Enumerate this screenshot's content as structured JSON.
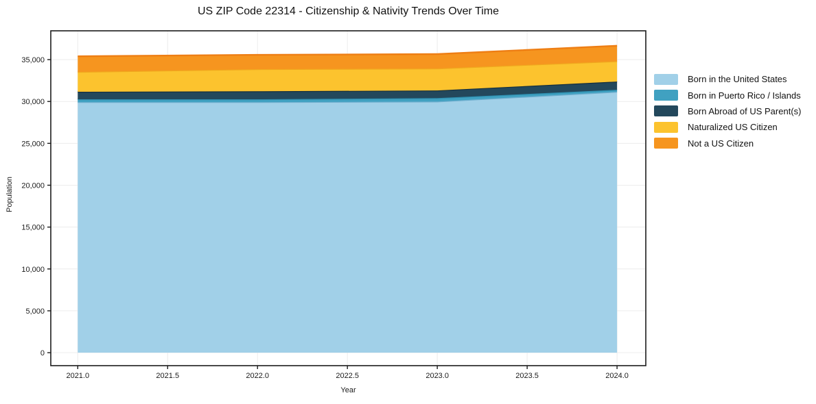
{
  "title": "US ZIP Code 22314 - Citizenship & Nativity Trends Over Time",
  "chart_data": {
    "type": "area",
    "stacked": true,
    "title": "US ZIP Code 22314 - Citizenship & Nativity Trends Over Time",
    "xlabel": "Year",
    "ylabel": "Population",
    "x": [
      2021,
      2022,
      2023,
      2024
    ],
    "series": [
      {
        "name": "Born in the United States",
        "fill": "#A1D0E8",
        "line": "#6FAECE",
        "values": [
          29930,
          29930,
          29990,
          31160
        ]
      },
      {
        "name": "Born in Puerto Rico / Islands",
        "fill": "#40A1C1",
        "line": "#2E8FB0",
        "values": [
          330,
          330,
          410,
          240
        ]
      },
      {
        "name": "Born Abroad of US Parent(s)",
        "fill": "#23485C",
        "line": "#152F3E",
        "values": [
          900,
          960,
          920,
          980
        ]
      },
      {
        "name": "Naturalized US Citizen",
        "fill": "#FCC32E",
        "line": "#F0A81E",
        "values": [
          2370,
          2640,
          2620,
          2430
        ]
      },
      {
        "name": "Not a US Citizen",
        "fill": "#F6951F",
        "line": "#EE7E14",
        "values": [
          1870,
          1710,
          1720,
          1850
        ]
      }
    ],
    "xtick_values": [
      2021.0,
      2021.5,
      2022.0,
      2022.5,
      2023.0,
      2023.5,
      2024.0
    ],
    "xtick_labels": [
      "2021.0",
      "2021.5",
      "2022.0",
      "2022.5",
      "2023.0",
      "2023.5",
      "2024.0"
    ],
    "ytick_values": [
      0,
      5000,
      10000,
      15000,
      20000,
      25000,
      30000,
      35000
    ],
    "ytick_labels": [
      "0",
      "5,000",
      "10,000",
      "15,000",
      "20,000",
      "25,000",
      "30,000",
      "35,000"
    ],
    "xlim": [
      2020.85,
      2024.16
    ],
    "ylim": [
      -1550,
      38440
    ],
    "grid": true,
    "legend_position": "right",
    "colors": {
      "grid": "#ECECEC",
      "frame": "#1a1a1a",
      "tick_text": "#1a1a1a",
      "background": "#ffffff"
    }
  }
}
